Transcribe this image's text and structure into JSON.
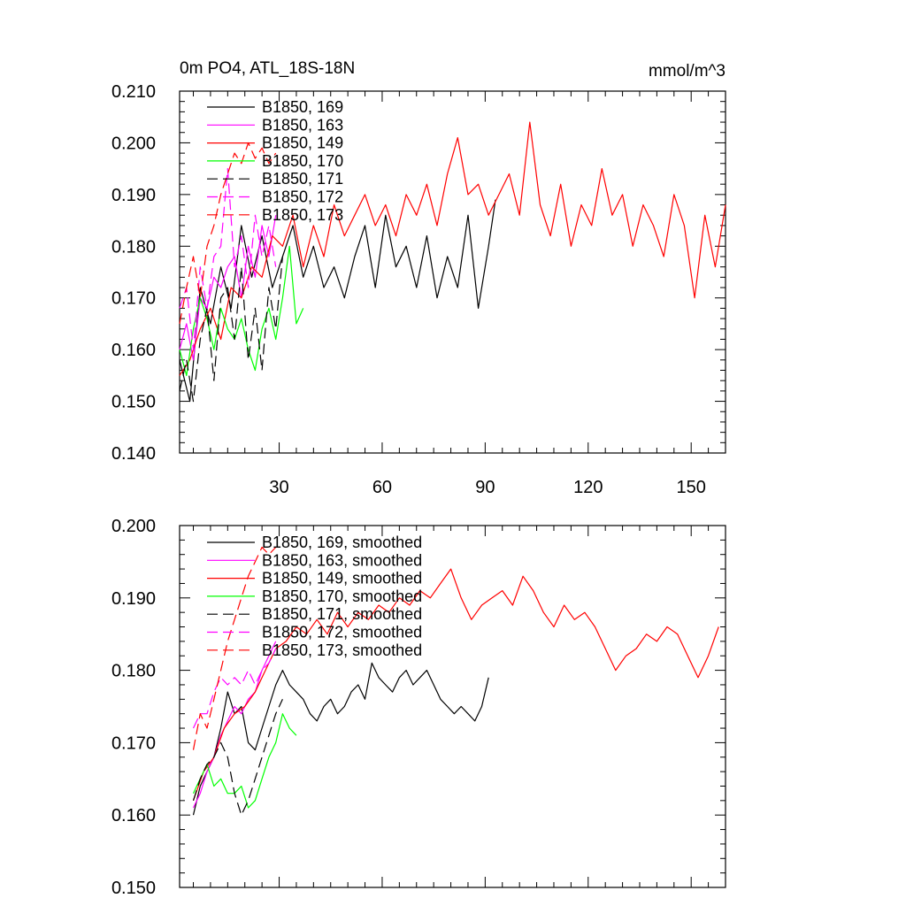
{
  "colors": {
    "black": "#000000",
    "magenta": "#ff00ff",
    "red": "#ff0000",
    "green": "#00ff00"
  },
  "chart_data": [
    {
      "type": "line",
      "title": "0m PO4, ATL_18S-18N",
      "units": "mmol/m^3",
      "xlabel": "",
      "ylabel": "",
      "xlim": [
        1,
        160
      ],
      "ylim": [
        0.14,
        0.21
      ],
      "xticks": [
        30,
        60,
        90,
        120,
        150
      ],
      "yticks": [
        "0.140",
        "0.150",
        "0.160",
        "0.170",
        "0.180",
        "0.190",
        "0.200",
        "0.210"
      ],
      "legend_position": "top-left",
      "series": [
        {
          "name": "B1850, 169",
          "color": "#000000",
          "dash": false,
          "x": [
            1,
            4,
            7,
            10,
            13,
            16,
            19,
            22,
            25,
            28,
            31,
            34,
            37,
            40,
            43,
            46,
            49,
            52,
            55,
            58,
            61,
            64,
            67,
            70,
            73,
            76,
            79,
            82,
            85,
            88,
            91,
            93
          ],
          "y": [
            0.158,
            0.15,
            0.172,
            0.165,
            0.176,
            0.168,
            0.184,
            0.174,
            0.182,
            0.172,
            0.178,
            0.184,
            0.174,
            0.18,
            0.172,
            0.176,
            0.17,
            0.178,
            0.184,
            0.172,
            0.186,
            0.176,
            0.18,
            0.172,
            0.182,
            0.17,
            0.178,
            0.172,
            0.186,
            0.168,
            0.18,
            0.189
          ]
        },
        {
          "name": "B1850, 163",
          "color": "#ff00ff",
          "dash": false,
          "x": [
            1,
            3,
            5,
            7,
            9,
            11,
            13,
            15,
            17,
            19,
            21,
            23,
            25,
            27,
            29
          ],
          "y": [
            0.16,
            0.165,
            0.158,
            0.17,
            0.168,
            0.174,
            0.172,
            0.176,
            0.178,
            0.17,
            0.18,
            0.174,
            0.184,
            0.178,
            0.186
          ]
        },
        {
          "name": "B1850, 149",
          "color": "#ff0000",
          "dash": false,
          "x": [
            1,
            4,
            7,
            10,
            13,
            16,
            19,
            22,
            25,
            28,
            31,
            34,
            37,
            40,
            43,
            46,
            49,
            52,
            55,
            58,
            61,
            64,
            67,
            70,
            73,
            76,
            79,
            82,
            85,
            88,
            91,
            94,
            97,
            100,
            103,
            106,
            109,
            112,
            115,
            118,
            121,
            124,
            127,
            130,
            133,
            136,
            139,
            142,
            145,
            148,
            151,
            154,
            157,
            160
          ],
          "y": [
            0.155,
            0.158,
            0.164,
            0.168,
            0.162,
            0.172,
            0.17,
            0.176,
            0.174,
            0.182,
            0.18,
            0.186,
            0.176,
            0.184,
            0.178,
            0.188,
            0.182,
            0.186,
            0.19,
            0.184,
            0.188,
            0.182,
            0.19,
            0.186,
            0.192,
            0.184,
            0.194,
            0.201,
            0.19,
            0.192,
            0.186,
            0.19,
            0.194,
            0.186,
            0.204,
            0.188,
            0.182,
            0.192,
            0.18,
            0.188,
            0.184,
            0.195,
            0.186,
            0.19,
            0.18,
            0.188,
            0.184,
            0.178,
            0.19,
            0.184,
            0.17,
            0.186,
            0.176,
            0.188
          ]
        },
        {
          "name": "B1850, 170",
          "color": "#00ff00",
          "dash": false,
          "x": [
            1,
            3,
            5,
            7,
            9,
            11,
            13,
            15,
            17,
            19,
            21,
            23,
            25,
            27,
            29,
            31,
            33,
            35,
            37
          ],
          "y": [
            0.16,
            0.155,
            0.164,
            0.17,
            0.166,
            0.16,
            0.168,
            0.164,
            0.162,
            0.166,
            0.16,
            0.156,
            0.164,
            0.168,
            0.162,
            0.17,
            0.18,
            0.165,
            0.168
          ]
        },
        {
          "name": "B1850, 171",
          "color": "#000000",
          "dash": true,
          "x": [
            1,
            3,
            5,
            7,
            9,
            11,
            13,
            15,
            17,
            19,
            21,
            23,
            25,
            27,
            29,
            31
          ],
          "y": [
            0.152,
            0.158,
            0.15,
            0.162,
            0.168,
            0.154,
            0.17,
            0.172,
            0.162,
            0.176,
            0.158,
            0.168,
            0.156,
            0.172,
            0.164,
            0.178
          ]
        },
        {
          "name": "B1850, 172",
          "color": "#ff00ff",
          "dash": true,
          "x": [
            1,
            3,
            5,
            7,
            9,
            11,
            13,
            15,
            17,
            19,
            21,
            23,
            25,
            27,
            29
          ],
          "y": [
            0.168,
            0.172,
            0.16,
            0.176,
            0.168,
            0.178,
            0.18,
            0.195,
            0.176,
            0.182,
            0.172,
            0.186,
            0.178,
            0.184,
            0.176
          ]
        },
        {
          "name": "B1850, 173",
          "color": "#ff0000",
          "dash": true,
          "x": [
            1,
            3,
            5,
            7,
            9,
            11,
            13,
            15,
            17,
            19,
            21,
            23,
            25,
            27,
            29
          ],
          "y": [
            0.165,
            0.172,
            0.178,
            0.17,
            0.18,
            0.184,
            0.19,
            0.194,
            0.198,
            0.196,
            0.2,
            0.197,
            0.199,
            0.196,
            0.198
          ]
        }
      ]
    },
    {
      "type": "line",
      "title": "",
      "xlabel": "",
      "ylabel": "",
      "xlim": [
        1,
        160
      ],
      "ylim": [
        0.15,
        0.2
      ],
      "xticks": [
        30,
        60,
        90,
        120,
        150
      ],
      "yticks": [
        "0.150",
        "0.160",
        "0.170",
        "0.180",
        "0.190",
        "0.200"
      ],
      "legend_position": "top-left",
      "series": [
        {
          "name": "B1850, 169, smoothed",
          "color": "#000000",
          "dash": false,
          "x": [
            5,
            7,
            9,
            11,
            13,
            15,
            17,
            19,
            21,
            23,
            25,
            27,
            29,
            31,
            33,
            35,
            37,
            39,
            41,
            43,
            45,
            47,
            49,
            51,
            53,
            55,
            57,
            59,
            61,
            63,
            65,
            67,
            69,
            71,
            73,
            75,
            77,
            79,
            81,
            83,
            85,
            87,
            89,
            91
          ],
          "y": [
            0.16,
            0.164,
            0.166,
            0.168,
            0.172,
            0.177,
            0.174,
            0.175,
            0.17,
            0.169,
            0.172,
            0.175,
            0.178,
            0.18,
            0.178,
            0.177,
            0.176,
            0.174,
            0.173,
            0.175,
            0.176,
            0.174,
            0.175,
            0.177,
            0.178,
            0.176,
            0.181,
            0.179,
            0.178,
            0.177,
            0.179,
            0.18,
            0.178,
            0.179,
            0.18,
            0.178,
            0.176,
            0.175,
            0.174,
            0.175,
            0.174,
            0.173,
            0.175,
            0.179
          ]
        },
        {
          "name": "B1850, 163, smoothed",
          "color": "#ff00ff",
          "dash": false,
          "x": [
            5,
            7,
            9,
            11,
            13,
            15,
            17,
            19,
            21,
            23,
            25,
            27,
            29
          ],
          "y": [
            0.161,
            0.163,
            0.166,
            0.168,
            0.171,
            0.173,
            0.175,
            0.174,
            0.176,
            0.177,
            0.18,
            0.182,
            0.184
          ]
        },
        {
          "name": "B1850, 149, smoothed",
          "color": "#ff0000",
          "dash": false,
          "x": [
            5,
            8,
            11,
            14,
            17,
            20,
            23,
            26,
            29,
            32,
            35,
            38,
            41,
            44,
            47,
            50,
            53,
            56,
            59,
            62,
            65,
            68,
            71,
            74,
            77,
            80,
            83,
            86,
            89,
            92,
            95,
            98,
            101,
            104,
            107,
            110,
            113,
            116,
            119,
            122,
            125,
            128,
            131,
            134,
            137,
            140,
            143,
            146,
            149,
            152,
            155,
            158
          ],
          "y": [
            0.162,
            0.166,
            0.168,
            0.172,
            0.174,
            0.175,
            0.177,
            0.18,
            0.183,
            0.184,
            0.186,
            0.185,
            0.187,
            0.185,
            0.188,
            0.186,
            0.188,
            0.187,
            0.189,
            0.188,
            0.19,
            0.189,
            0.191,
            0.19,
            0.192,
            0.194,
            0.19,
            0.187,
            0.189,
            0.19,
            0.191,
            0.189,
            0.193,
            0.191,
            0.188,
            0.186,
            0.189,
            0.187,
            0.188,
            0.186,
            0.183,
            0.18,
            0.182,
            0.183,
            0.185,
            0.184,
            0.186,
            0.185,
            0.182,
            0.179,
            0.182,
            0.186
          ]
        },
        {
          "name": "B1850, 170, smoothed",
          "color": "#00ff00",
          "dash": false,
          "x": [
            5,
            7,
            9,
            11,
            13,
            15,
            17,
            19,
            21,
            23,
            25,
            27,
            29,
            31,
            33,
            35
          ],
          "y": [
            0.163,
            0.165,
            0.167,
            0.164,
            0.165,
            0.163,
            0.163,
            0.164,
            0.161,
            0.162,
            0.165,
            0.168,
            0.17,
            0.174,
            0.172,
            0.171
          ]
        },
        {
          "name": "B1850, 171, smoothed",
          "color": "#000000",
          "dash": true,
          "x": [
            5,
            7,
            9,
            11,
            13,
            15,
            17,
            19,
            21,
            23,
            25,
            27,
            29,
            31
          ],
          "y": [
            0.162,
            0.165,
            0.167,
            0.168,
            0.17,
            0.168,
            0.163,
            0.16,
            0.162,
            0.165,
            0.168,
            0.171,
            0.174,
            0.176
          ]
        },
        {
          "name": "B1850, 172, smoothed",
          "color": "#ff00ff",
          "dash": true,
          "x": [
            5,
            7,
            9,
            11,
            13,
            15,
            17,
            19,
            21,
            23,
            25,
            27,
            29
          ],
          "y": [
            0.172,
            0.174,
            0.174,
            0.177,
            0.179,
            0.178,
            0.179,
            0.178,
            0.18,
            0.178,
            0.18,
            0.181,
            0.183
          ]
        },
        {
          "name": "B1850, 173, smoothed",
          "color": "#ff0000",
          "dash": true,
          "x": [
            5,
            7,
            9,
            11,
            13,
            15,
            17,
            19,
            21,
            23,
            25,
            27,
            29
          ],
          "y": [
            0.169,
            0.174,
            0.172,
            0.176,
            0.18,
            0.184,
            0.187,
            0.19,
            0.193,
            0.195,
            0.197,
            0.196,
            0.197
          ]
        }
      ]
    }
  ]
}
